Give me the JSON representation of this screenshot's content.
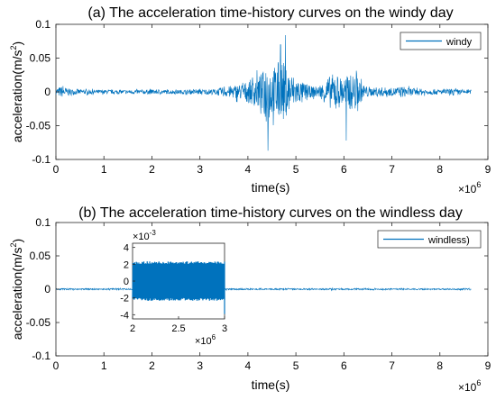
{
  "chart_data": [
    {
      "type": "line",
      "title": "(a) The acceleration time-history curves on the windy day",
      "xlabel": "time(s)",
      "ylabel": "acceleration(m/s²)",
      "x_multiplier_label": "×10",
      "x_multiplier_exp": "6",
      "xlim": [
        0,
        9
      ],
      "ylim": [
        -0.1,
        0.1
      ],
      "xticks": [
        "0",
        "1",
        "2",
        "3",
        "4",
        "5",
        "6",
        "7",
        "8",
        "9"
      ],
      "yticks": [
        "-0.1",
        "-0.05",
        "0",
        "0.05",
        "0.1"
      ],
      "legend": {
        "label": "windy",
        "position": "top-right"
      },
      "line_color": "#0072BD",
      "series": [
        {
          "name": "windy",
          "x_end": 8.65,
          "amplitude_envelope": [
            [
              0.0,
              0.006
            ],
            [
              0.1,
              0.012
            ],
            [
              0.3,
              0.006
            ],
            [
              0.6,
              0.005
            ],
            [
              1.0,
              0.004
            ],
            [
              1.5,
              0.004
            ],
            [
              2.0,
              0.005
            ],
            [
              2.5,
              0.004
            ],
            [
              3.0,
              0.005
            ],
            [
              3.3,
              0.006
            ],
            [
              3.6,
              0.012
            ],
            [
              3.9,
              0.018
            ],
            [
              4.1,
              0.028
            ],
            [
              4.3,
              0.04
            ],
            [
              4.4,
              0.07
            ],
            [
              4.5,
              0.05
            ],
            [
              4.6,
              0.06
            ],
            [
              4.7,
              0.075
            ],
            [
              4.8,
              0.05
            ],
            [
              4.95,
              0.035
            ],
            [
              5.1,
              0.022
            ],
            [
              5.3,
              0.012
            ],
            [
              5.5,
              0.012
            ],
            [
              5.65,
              0.03
            ],
            [
              5.8,
              0.04
            ],
            [
              5.95,
              0.03
            ],
            [
              6.1,
              0.035
            ],
            [
              6.2,
              0.038
            ],
            [
              6.3,
              0.03
            ],
            [
              6.4,
              0.015
            ],
            [
              6.6,
              0.008
            ],
            [
              6.8,
              0.01
            ],
            [
              7.0,
              0.008
            ],
            [
              7.2,
              0.012
            ],
            [
              7.4,
              0.008
            ],
            [
              7.7,
              0.006
            ],
            [
              8.0,
              0.005
            ],
            [
              8.3,
              0.006
            ],
            [
              8.65,
              0.004
            ]
          ],
          "peaks": [
            [
              4.42,
              -0.087
            ],
            [
              4.78,
              0.084
            ],
            [
              4.68,
              0.07
            ],
            [
              6.05,
              -0.072
            ]
          ]
        }
      ]
    },
    {
      "type": "line",
      "title": "(b) The acceleration time-history curves on the windless day",
      "xlabel": "time(s)",
      "ylabel": "acceleration(m/s²)",
      "x_multiplier_label": "×10",
      "x_multiplier_exp": "6",
      "xlim": [
        0,
        9
      ],
      "ylim": [
        -0.1,
        0.1
      ],
      "xticks": [
        "0",
        "1",
        "2",
        "3",
        "4",
        "5",
        "6",
        "7",
        "8",
        "9"
      ],
      "yticks": [
        "-0.1",
        "-0.05",
        "0",
        "0.05",
        "0.1"
      ],
      "legend": {
        "label": "windless)",
        "position": "top-right"
      },
      "line_color": "#0072BD",
      "series": [
        {
          "name": "windless)",
          "x_end": 8.65,
          "amplitude_envelope": [
            [
              0.0,
              0.0015
            ],
            [
              5.7,
              0.0015
            ],
            [
              5.75,
              0.003
            ],
            [
              5.8,
              0.0015
            ],
            [
              8.65,
              0.0015
            ]
          ]
        }
      ],
      "inset": {
        "xlim": [
          2,
          3
        ],
        "ylim": [
          -4.5,
          4.5
        ],
        "xticks": [
          "2",
          "2.5",
          "3"
        ],
        "yticks": [
          "-4",
          "-2",
          "0",
          "2",
          "4"
        ],
        "y_multiplier_label": "×10",
        "y_multiplier_exp": "-3",
        "x_multiplier_label": "×10",
        "x_multiplier_exp": "6",
        "band": {
          "x_start": 2.0,
          "x_end": 3.0,
          "amplitude": 2.3
        }
      }
    }
  ]
}
